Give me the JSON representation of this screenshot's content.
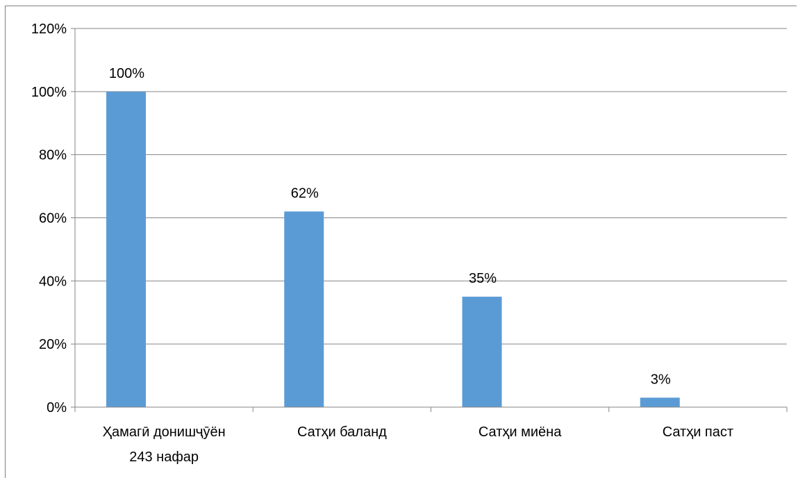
{
  "chart_data": {
    "type": "bar",
    "title": "",
    "xlabel": "",
    "ylabel": "",
    "categories": [
      [
        "Ҳамагӣ донишҷӯён",
        "243 нафар"
      ],
      [
        "Сатҳи баланд"
      ],
      [
        "Сатҳи миёна"
      ],
      [
        "Сатҳи паст"
      ]
    ],
    "values": [
      100,
      62,
      35,
      3
    ],
    "data_labels": [
      "100%",
      "62%",
      "35%",
      "3%"
    ],
    "ylim": [
      0,
      120
    ],
    "yticks": [
      0,
      20,
      40,
      60,
      80,
      100,
      120
    ],
    "ytick_labels": [
      "0%",
      "20%",
      "40%",
      "60%",
      "80%",
      "100%",
      "120%"
    ],
    "grid": true,
    "legend": "none",
    "bar_color": "#5b9bd5",
    "grid_color": "#868686"
  }
}
